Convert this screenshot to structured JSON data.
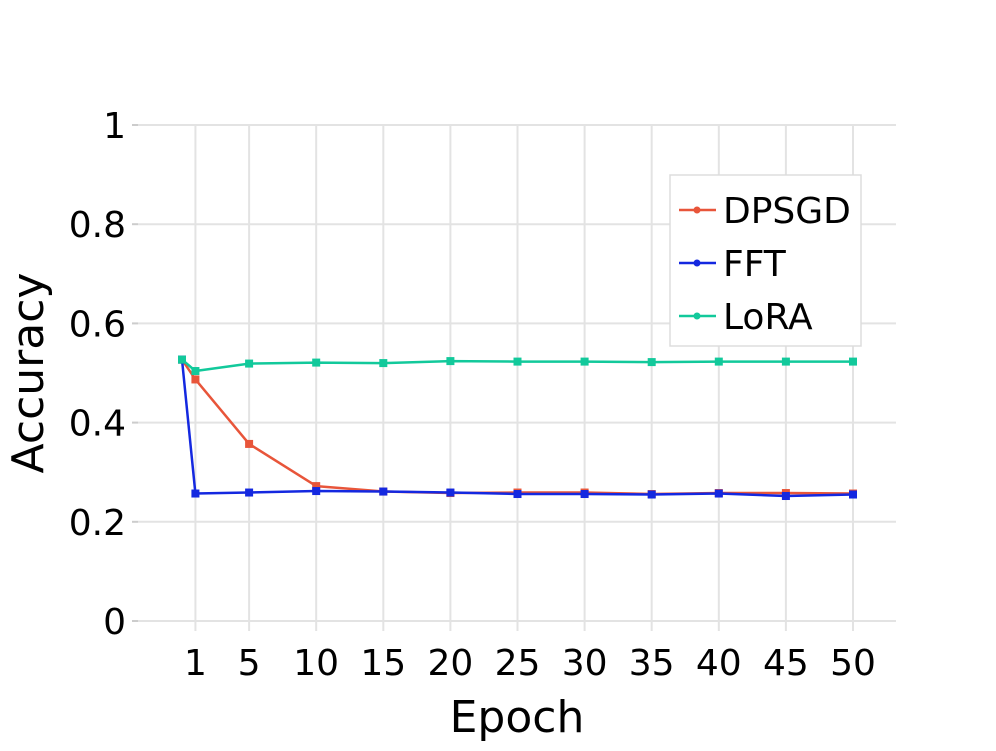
{
  "chart_data": {
    "type": "line",
    "title": "",
    "xlabel": "Epoch",
    "ylabel": "Accuracy",
    "x": [
      0,
      1,
      5,
      10,
      15,
      20,
      25,
      30,
      35,
      40,
      45,
      50
    ],
    "xticks": [
      1,
      5,
      10,
      15,
      20,
      25,
      30,
      35,
      40,
      45,
      50
    ],
    "yticks": [
      0,
      0.2,
      0.4,
      0.6,
      0.8,
      1
    ],
    "ytick_labels": [
      "0",
      "0.2",
      "0.4",
      "0.6",
      "0.8",
      "1"
    ],
    "ylim": [
      0,
      1
    ],
    "xlim": [
      -1,
      51
    ],
    "grid": true,
    "legend_position": "top-right",
    "series": [
      {
        "name": "DPSGD",
        "color": "#e8553a",
        "values": [
          0.527,
          0.487,
          0.357,
          0.272,
          0.261,
          0.258,
          0.259,
          0.259,
          0.256,
          0.258,
          0.258,
          0.257
        ]
      },
      {
        "name": "FFT",
        "color": "#1428e0",
        "values": [
          0.527,
          0.257,
          0.259,
          0.262,
          0.261,
          0.259,
          0.256,
          0.256,
          0.255,
          0.257,
          0.252,
          0.255
        ]
      },
      {
        "name": "LoRA",
        "color": "#12c99b",
        "values": [
          0.527,
          0.504,
          0.519,
          0.521,
          0.52,
          0.524,
          0.523,
          0.523,
          0.522,
          0.523,
          0.523,
          0.523
        ]
      }
    ]
  }
}
